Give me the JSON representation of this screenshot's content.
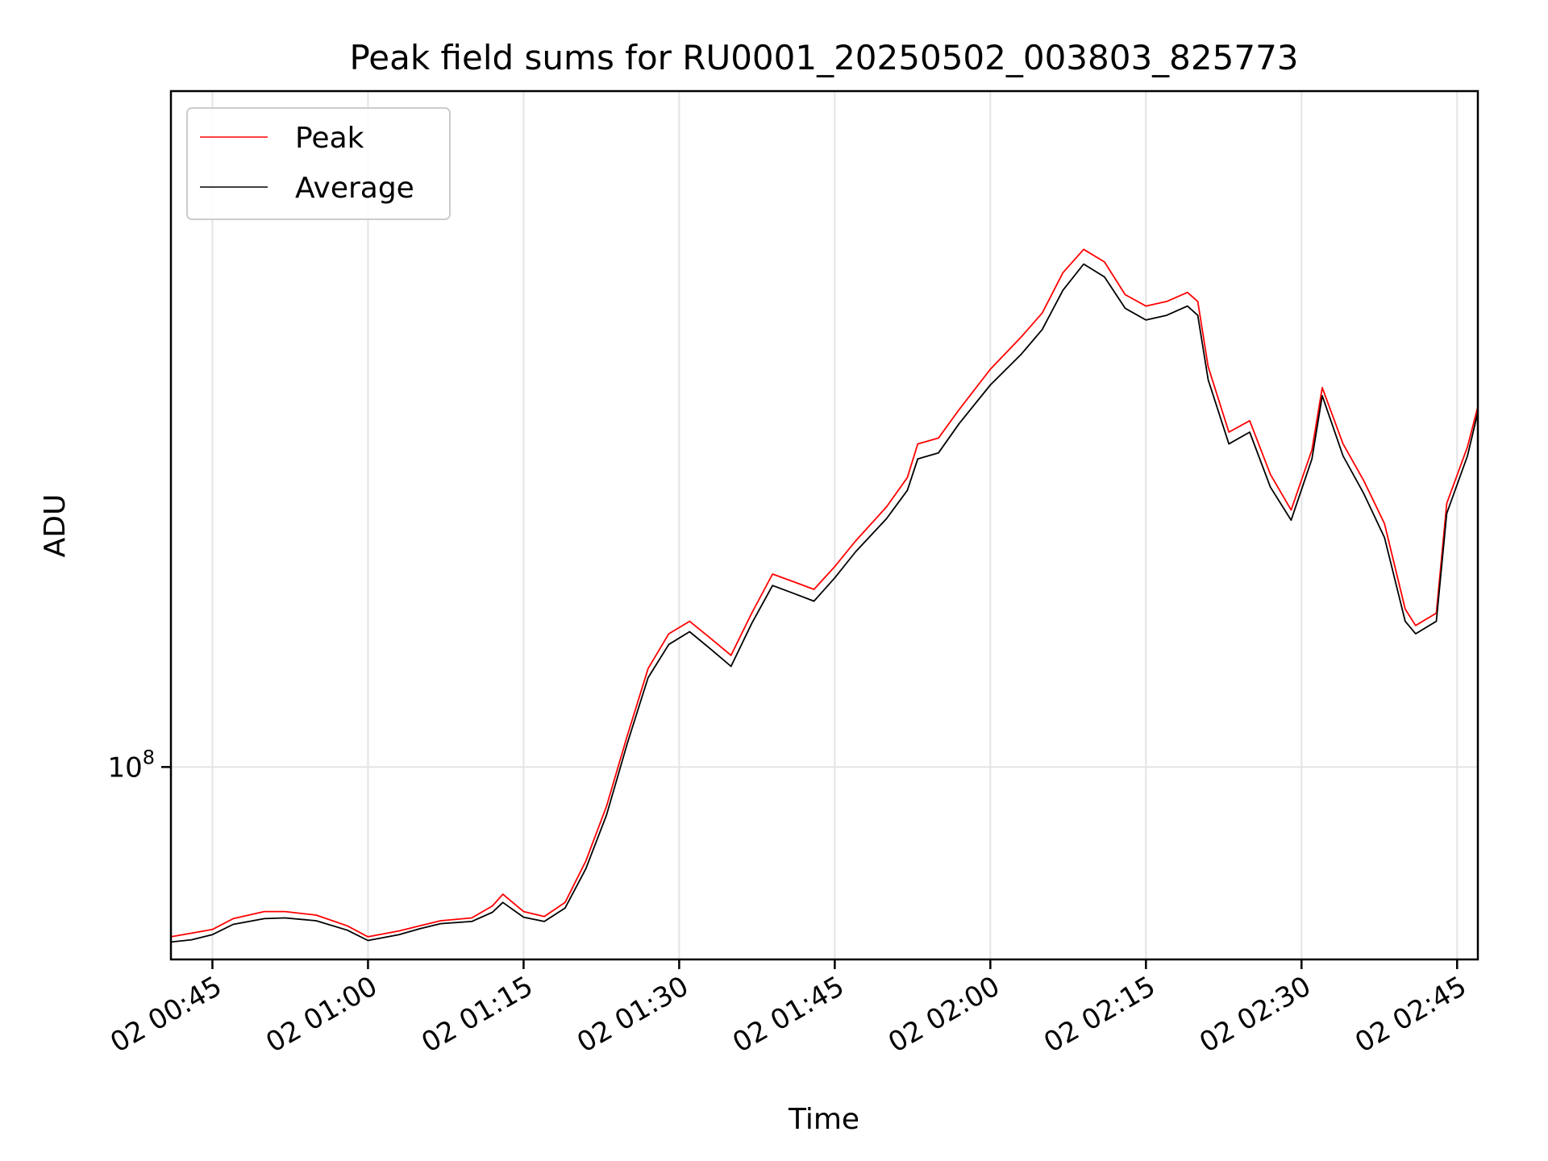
{
  "chart_data": {
    "type": "line",
    "title": "Peak field sums for RU0001_20250502_003803_825773",
    "xlabel": "Time",
    "ylabel": "ADU",
    "yscale": "log",
    "grid": true,
    "legend_position": "top-left",
    "xlim": [
      "2025-05-02 00:41",
      "2025-05-02 02:47"
    ],
    "ylim": [
      70000000,
      350000000
    ],
    "x_ticks": [
      {
        "t": "2025-05-02 00:45",
        "label": "02 00:45"
      },
      {
        "t": "2025-05-02 01:00",
        "label": "02 01:00"
      },
      {
        "t": "2025-05-02 01:15",
        "label": "02 01:15"
      },
      {
        "t": "2025-05-02 01:30",
        "label": "02 01:30"
      },
      {
        "t": "2025-05-02 01:45",
        "label": "02 01:45"
      },
      {
        "t": "2025-05-02 02:00",
        "label": "02 02:00"
      },
      {
        "t": "2025-05-02 02:15",
        "label": "02 02:15"
      },
      {
        "t": "2025-05-02 02:30",
        "label": "02 02:30"
      },
      {
        "t": "2025-05-02 02:45",
        "label": "02 02:45"
      }
    ],
    "y_ticks": [
      {
        "value": 100000000,
        "base": "10",
        "exp": "8"
      }
    ],
    "series": [
      {
        "name": "Peak",
        "color": "#ff0000",
        "points": [
          [
            "2025-05-02 00:41",
            73000000
          ],
          [
            "2025-05-02 00:43",
            73500000
          ],
          [
            "2025-05-02 00:45",
            74000000
          ],
          [
            "2025-05-02 00:47",
            75500000
          ],
          [
            "2025-05-02 00:50",
            76500000
          ],
          [
            "2025-05-02 00:52",
            76500000
          ],
          [
            "2025-05-02 00:55",
            76000000
          ],
          [
            "2025-05-02 00:58",
            74500000
          ],
          [
            "2025-05-02 01:00",
            73000000
          ],
          [
            "2025-05-02 01:03",
            73800000
          ],
          [
            "2025-05-02 01:05",
            74500000
          ],
          [
            "2025-05-02 01:07",
            75200000
          ],
          [
            "2025-05-02 01:10",
            75600000
          ],
          [
            "2025-05-02 01:12",
            77300000
          ],
          [
            "2025-05-02 01:13",
            79000000
          ],
          [
            "2025-05-02 01:15",
            76500000
          ],
          [
            "2025-05-02 01:17",
            75800000
          ],
          [
            "2025-05-02 01:19",
            77800000
          ],
          [
            "2025-05-02 01:21",
            84000000
          ],
          [
            "2025-05-02 01:23",
            93000000
          ],
          [
            "2025-05-02 01:25",
            106000000
          ],
          [
            "2025-05-02 01:27",
            120000000
          ],
          [
            "2025-05-02 01:29",
            128000000
          ],
          [
            "2025-05-02 01:31",
            131000000
          ],
          [
            "2025-05-02 01:33",
            127000000
          ],
          [
            "2025-05-02 01:35",
            123000000
          ],
          [
            "2025-05-02 01:37",
            133000000
          ],
          [
            "2025-05-02 01:39",
            143000000
          ],
          [
            "2025-05-02 01:41",
            141000000
          ],
          [
            "2025-05-02 01:43",
            139000000
          ],
          [
            "2025-05-02 01:45",
            145000000
          ],
          [
            "2025-05-02 01:47",
            152000000
          ],
          [
            "2025-05-02 01:50",
            162000000
          ],
          [
            "2025-05-02 01:52",
            171000000
          ],
          [
            "2025-05-02 01:53",
            182000000
          ],
          [
            "2025-05-02 01:55",
            184000000
          ],
          [
            "2025-05-02 01:57",
            194000000
          ],
          [
            "2025-05-02 02:00",
            209000000
          ],
          [
            "2025-05-02 02:03",
            222000000
          ],
          [
            "2025-05-02 02:05",
            232000000
          ],
          [
            "2025-05-02 02:07",
            250000000
          ],
          [
            "2025-05-02 02:09",
            261000000
          ],
          [
            "2025-05-02 02:11",
            255000000
          ],
          [
            "2025-05-02 02:13",
            240000000
          ],
          [
            "2025-05-02 02:15",
            235000000
          ],
          [
            "2025-05-02 02:17",
            237000000
          ],
          [
            "2025-05-02 02:19",
            241000000
          ],
          [
            "2025-05-02 02:20",
            237000000
          ],
          [
            "2025-05-02 02:21",
            210000000
          ],
          [
            "2025-05-02 02:23",
            186000000
          ],
          [
            "2025-05-02 02:25",
            190000000
          ],
          [
            "2025-05-02 02:27",
            172000000
          ],
          [
            "2025-05-02 02:29",
            161000000
          ],
          [
            "2025-05-02 02:31",
            180000000
          ],
          [
            "2025-05-02 02:32",
            202000000
          ],
          [
            "2025-05-02 02:34",
            182000000
          ],
          [
            "2025-05-02 02:36",
            170000000
          ],
          [
            "2025-05-02 02:38",
            157000000
          ],
          [
            "2025-05-02 02:40",
            134000000
          ],
          [
            "2025-05-02 02:41",
            130000000
          ],
          [
            "2025-05-02 02:43",
            133000000
          ],
          [
            "2025-05-02 02:44",
            163000000
          ],
          [
            "2025-05-02 02:46",
            181000000
          ],
          [
            "2025-05-02 02:47",
            195000000
          ]
        ]
      },
      {
        "name": "Average",
        "color": "#000000",
        "points": [
          [
            "2025-05-02 00:41",
            72300000
          ],
          [
            "2025-05-02 00:43",
            72600000
          ],
          [
            "2025-05-02 00:45",
            73300000
          ],
          [
            "2025-05-02 00:47",
            74700000
          ],
          [
            "2025-05-02 00:50",
            75500000
          ],
          [
            "2025-05-02 00:52",
            75600000
          ],
          [
            "2025-05-02 00:55",
            75200000
          ],
          [
            "2025-05-02 00:58",
            73900000
          ],
          [
            "2025-05-02 01:00",
            72500000
          ],
          [
            "2025-05-02 01:03",
            73300000
          ],
          [
            "2025-05-02 01:05",
            74100000
          ],
          [
            "2025-05-02 01:07",
            74800000
          ],
          [
            "2025-05-02 01:10",
            75100000
          ],
          [
            "2025-05-02 01:12",
            76400000
          ],
          [
            "2025-05-02 01:13",
            77800000
          ],
          [
            "2025-05-02 01:15",
            75700000
          ],
          [
            "2025-05-02 01:17",
            75100000
          ],
          [
            "2025-05-02 01:19",
            77000000
          ],
          [
            "2025-05-02 01:21",
            82800000
          ],
          [
            "2025-05-02 01:23",
            91500000
          ],
          [
            "2025-05-02 01:25",
            104500000
          ],
          [
            "2025-05-02 01:27",
            118000000
          ],
          [
            "2025-05-02 01:29",
            125500000
          ],
          [
            "2025-05-02 01:31",
            128500000
          ],
          [
            "2025-05-02 01:33",
            124500000
          ],
          [
            "2025-05-02 01:35",
            120500000
          ],
          [
            "2025-05-02 01:37",
            130500000
          ],
          [
            "2025-05-02 01:39",
            140000000
          ],
          [
            "2025-05-02 01:41",
            138000000
          ],
          [
            "2025-05-02 01:43",
            136000000
          ],
          [
            "2025-05-02 01:45",
            142000000
          ],
          [
            "2025-05-02 01:47",
            149000000
          ],
          [
            "2025-05-02 01:50",
            158500000
          ],
          [
            "2025-05-02 01:52",
            167000000
          ],
          [
            "2025-05-02 01:53",
            177000000
          ],
          [
            "2025-05-02 01:55",
            179000000
          ],
          [
            "2025-05-02 01:57",
            189000000
          ],
          [
            "2025-05-02 02:00",
            203000000
          ],
          [
            "2025-05-02 02:03",
            215000000
          ],
          [
            "2025-05-02 02:05",
            225000000
          ],
          [
            "2025-05-02 02:07",
            242000000
          ],
          [
            "2025-05-02 02:09",
            254000000
          ],
          [
            "2025-05-02 02:11",
            248000000
          ],
          [
            "2025-05-02 02:13",
            234000000
          ],
          [
            "2025-05-02 02:15",
            229000000
          ],
          [
            "2025-05-02 02:17",
            231000000
          ],
          [
            "2025-05-02 02:19",
            235000000
          ],
          [
            "2025-05-02 02:20",
            231000000
          ],
          [
            "2025-05-02 02:21",
            205000000
          ],
          [
            "2025-05-02 02:23",
            182000000
          ],
          [
            "2025-05-02 02:25",
            186000000
          ],
          [
            "2025-05-02 02:27",
            168000000
          ],
          [
            "2025-05-02 02:29",
            158000000
          ],
          [
            "2025-05-02 02:31",
            177000000
          ],
          [
            "2025-05-02 02:32",
            199000000
          ],
          [
            "2025-05-02 02:34",
            178000000
          ],
          [
            "2025-05-02 02:36",
            166000000
          ],
          [
            "2025-05-02 02:38",
            153000000
          ],
          [
            "2025-05-02 02:40",
            131000000
          ],
          [
            "2025-05-02 02:41",
            128000000
          ],
          [
            "2025-05-02 02:43",
            131000000
          ],
          [
            "2025-05-02 02:44",
            160000000
          ],
          [
            "2025-05-02 02:46",
            178000000
          ],
          [
            "2025-05-02 02:47",
            193000000
          ]
        ]
      }
    ]
  }
}
